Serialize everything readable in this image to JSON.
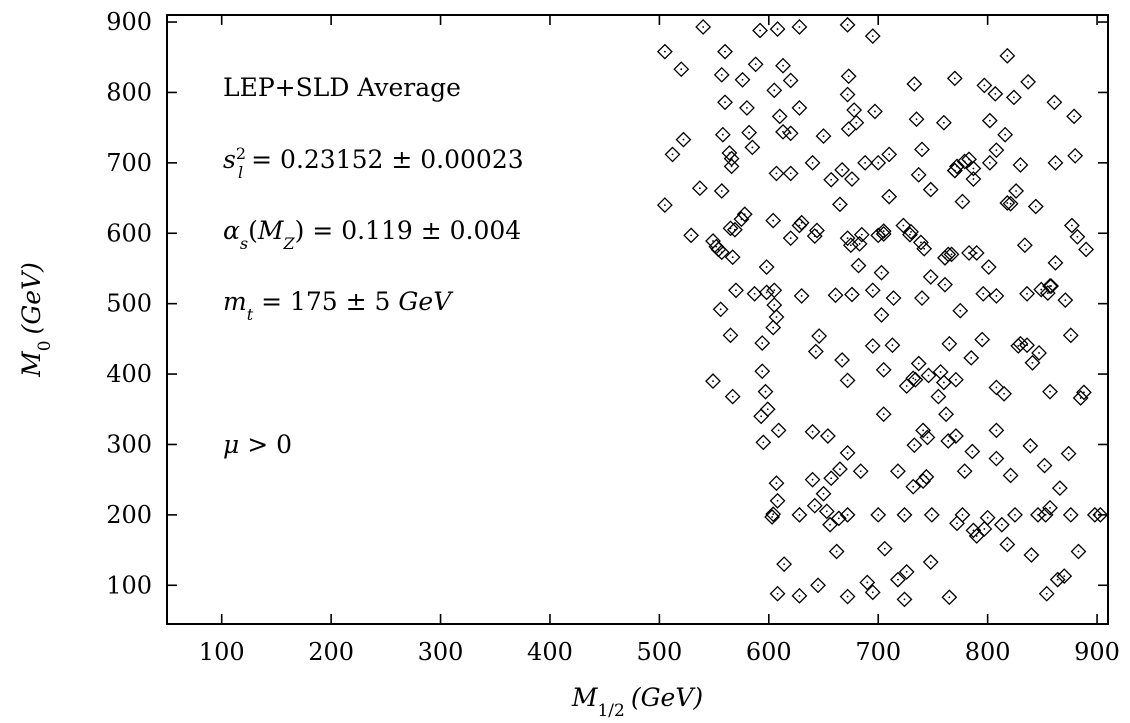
{
  "chart_data": {
    "type": "scatter",
    "xlabel": "M1/2 (GeV)",
    "ylabel": "M0 (GeV)",
    "xlim": [
      50,
      910
    ],
    "ylim": [
      45,
      910
    ],
    "x_ticks": [
      100,
      200,
      300,
      400,
      500,
      600,
      700,
      800,
      900
    ],
    "y_ticks": [
      100,
      200,
      300,
      400,
      500,
      600,
      700,
      800,
      900
    ],
    "grid": false,
    "annotations": [
      "LEP+SLD Average",
      "s_l^2 = 0.23152 ± 0.00023",
      "αs(MZ) = 0.119 ± 0.004",
      "mt = 175 ± 5 GeV",
      "μ > 0"
    ],
    "marker": "diamond",
    "points": [
      [
        505,
        858
      ],
      [
        520,
        833
      ],
      [
        540,
        893
      ],
      [
        592,
        888
      ],
      [
        608,
        890
      ],
      [
        628,
        893
      ],
      [
        672,
        896
      ],
      [
        695,
        880
      ],
      [
        560,
        858
      ],
      [
        576,
        818
      ],
      [
        588,
        840
      ],
      [
        613,
        838
      ],
      [
        620,
        817
      ],
      [
        557,
        825
      ],
      [
        605,
        803
      ],
      [
        560,
        786
      ],
      [
        580,
        778
      ],
      [
        610,
        766
      ],
      [
        628,
        778
      ],
      [
        673,
        823
      ],
      [
        672,
        797
      ],
      [
        678,
        775
      ],
      [
        680,
        757
      ],
      [
        697,
        773
      ],
      [
        733,
        812
      ],
      [
        770,
        820
      ],
      [
        797,
        810
      ],
      [
        807,
        798
      ],
      [
        818,
        852
      ],
      [
        824,
        793
      ],
      [
        837,
        815
      ],
      [
        861,
        786
      ],
      [
        879,
        766
      ],
      [
        512,
        712
      ],
      [
        522,
        733
      ],
      [
        558,
        740
      ],
      [
        582,
        743
      ],
      [
        585,
        722
      ],
      [
        613,
        744
      ],
      [
        620,
        742
      ],
      [
        650,
        738
      ],
      [
        673,
        748
      ],
      [
        710,
        712
      ],
      [
        735,
        762
      ],
      [
        760,
        757
      ],
      [
        802,
        760
      ],
      [
        740,
        719
      ],
      [
        808,
        718
      ],
      [
        816,
        740
      ],
      [
        564,
        714
      ],
      [
        566,
        706
      ],
      [
        566,
        695
      ],
      [
        607,
        685
      ],
      [
        620,
        685
      ],
      [
        640,
        700
      ],
      [
        657,
        676
      ],
      [
        667,
        690
      ],
      [
        676,
        677
      ],
      [
        688,
        700
      ],
      [
        700,
        700
      ],
      [
        710,
        652
      ],
      [
        737,
        683
      ],
      [
        748,
        662
      ],
      [
        770,
        689
      ],
      [
        772,
        695
      ],
      [
        779,
        702
      ],
      [
        783,
        705
      ],
      [
        787,
        692
      ],
      [
        787,
        677
      ],
      [
        770,
        689
      ],
      [
        802,
        700
      ],
      [
        821,
        642
      ],
      [
        826,
        660
      ],
      [
        830,
        697
      ],
      [
        862,
        700
      ],
      [
        880,
        710
      ],
      [
        537,
        664
      ],
      [
        557,
        660
      ],
      [
        505,
        640
      ],
      [
        578,
        627
      ],
      [
        575,
        620
      ],
      [
        604,
        618
      ],
      [
        630,
        615
      ],
      [
        644,
        604
      ],
      [
        665,
        641
      ],
      [
        685,
        598
      ],
      [
        700,
        597
      ],
      [
        705,
        603
      ],
      [
        723,
        611
      ],
      [
        730,
        602
      ],
      [
        742,
        578
      ],
      [
        761,
        565
      ],
      [
        764,
        570
      ],
      [
        767,
        570
      ],
      [
        790,
        572
      ],
      [
        801,
        552
      ],
      [
        808,
        511
      ],
      [
        834,
        583
      ],
      [
        857,
        525
      ],
      [
        862,
        558
      ],
      [
        877,
        611
      ],
      [
        882,
        595
      ],
      [
        890,
        577
      ],
      [
        529,
        597
      ],
      [
        549,
        589
      ],
      [
        552,
        581
      ],
      [
        554,
        577
      ],
      [
        557,
        573
      ],
      [
        565,
        607
      ],
      [
        569,
        605
      ],
      [
        567,
        566
      ],
      [
        598,
        552
      ],
      [
        620,
        593
      ],
      [
        628,
        611
      ],
      [
        642,
        596
      ],
      [
        672,
        593
      ],
      [
        675,
        583
      ],
      [
        683,
        585
      ],
      [
        682,
        554
      ],
      [
        703,
        544
      ],
      [
        705,
        599
      ],
      [
        729,
        598
      ],
      [
        739,
        587
      ],
      [
        777,
        645
      ],
      [
        783,
        572
      ],
      [
        818,
        643
      ],
      [
        844,
        638
      ],
      [
        858,
        525
      ],
      [
        871,
        505
      ],
      [
        876,
        455
      ],
      [
        556,
        492
      ],
      [
        570,
        519
      ],
      [
        587,
        514
      ],
      [
        598,
        516
      ],
      [
        605,
        519
      ],
      [
        605,
        498
      ],
      [
        607,
        481
      ],
      [
        630,
        511
      ],
      [
        661,
        512
      ],
      [
        676,
        513
      ],
      [
        695,
        519
      ],
      [
        703,
        484
      ],
      [
        714,
        508
      ],
      [
        740,
        508
      ],
      [
        748,
        538
      ],
      [
        761,
        527
      ],
      [
        775,
        490
      ],
      [
        796,
        514
      ],
      [
        836,
        514
      ],
      [
        849,
        520
      ],
      [
        855,
        515
      ],
      [
        565,
        455
      ],
      [
        594,
        444
      ],
      [
        604,
        466
      ],
      [
        643,
        432
      ],
      [
        646,
        454
      ],
      [
        667,
        420
      ],
      [
        672,
        391
      ],
      [
        695,
        440
      ],
      [
        705,
        406
      ],
      [
        713,
        441
      ],
      [
        726,
        383
      ],
      [
        734,
        392
      ],
      [
        732,
        394
      ],
      [
        737,
        415
      ],
      [
        746,
        398
      ],
      [
        757,
        403
      ],
      [
        760,
        388
      ],
      [
        765,
        443
      ],
      [
        771,
        392
      ],
      [
        785,
        423
      ],
      [
        795,
        449
      ],
      [
        808,
        381
      ],
      [
        815,
        372
      ],
      [
        828,
        440
      ],
      [
        830,
        443
      ],
      [
        836,
        441
      ],
      [
        841,
        416
      ],
      [
        847,
        430
      ],
      [
        857,
        375
      ],
      [
        885,
        366
      ],
      [
        888,
        374
      ],
      [
        549,
        390
      ],
      [
        567,
        368
      ],
      [
        594,
        404
      ],
      [
        597,
        375
      ],
      [
        599,
        350
      ],
      [
        593,
        340
      ],
      [
        595,
        303
      ],
      [
        609,
        320
      ],
      [
        640,
        318
      ],
      [
        654,
        312
      ],
      [
        665,
        265
      ],
      [
        672,
        288
      ],
      [
        684,
        262
      ],
      [
        705,
        343
      ],
      [
        718,
        262
      ],
      [
        733,
        299
      ],
      [
        745,
        310
      ],
      [
        741,
        320
      ],
      [
        755,
        368
      ],
      [
        762,
        343
      ],
      [
        764,
        305
      ],
      [
        771,
        312
      ],
      [
        779,
        262
      ],
      [
        786,
        290
      ],
      [
        808,
        280
      ],
      [
        808,
        320
      ],
      [
        821,
        256
      ],
      [
        839,
        298
      ],
      [
        852,
        270
      ],
      [
        866,
        238
      ],
      [
        874,
        287
      ],
      [
        603,
        197
      ],
      [
        604,
        201
      ],
      [
        607,
        245
      ],
      [
        608,
        220
      ],
      [
        628,
        200
      ],
      [
        640,
        250
      ],
      [
        642,
        213
      ],
      [
        650,
        230
      ],
      [
        653,
        205
      ],
      [
        656,
        186
      ],
      [
        657,
        252
      ],
      [
        664,
        195
      ],
      [
        672,
        200
      ],
      [
        700,
        200
      ],
      [
        724,
        200
      ],
      [
        732,
        240
      ],
      [
        741,
        248
      ],
      [
        744,
        254
      ],
      [
        749,
        200
      ],
      [
        772,
        188
      ],
      [
        777,
        200
      ],
      [
        787,
        178
      ],
      [
        797,
        180
      ],
      [
        800,
        196
      ],
      [
        813,
        186
      ],
      [
        825,
        200
      ],
      [
        840,
        143
      ],
      [
        846,
        200
      ],
      [
        853,
        200
      ],
      [
        857,
        210
      ],
      [
        876,
        200
      ],
      [
        903,
        200
      ],
      [
        608,
        88
      ],
      [
        614,
        130
      ],
      [
        628,
        85
      ],
      [
        645,
        100
      ],
      [
        662,
        148
      ],
      [
        672,
        84
      ],
      [
        690,
        104
      ],
      [
        695,
        90
      ],
      [
        706,
        152
      ],
      [
        718,
        108
      ],
      [
        724,
        80
      ],
      [
        726,
        119
      ],
      [
        748,
        133
      ],
      [
        765,
        83
      ],
      [
        790,
        170
      ],
      [
        818,
        158
      ],
      [
        854,
        88
      ],
      [
        864,
        108
      ],
      [
        870,
        113
      ],
      [
        883,
        148
      ],
      [
        898,
        200
      ]
    ]
  }
}
